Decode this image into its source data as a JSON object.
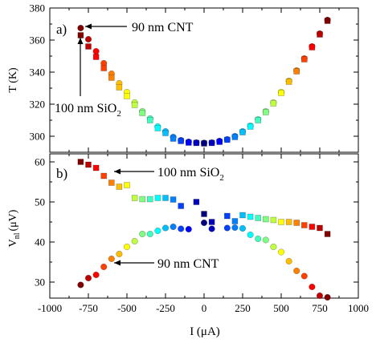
{
  "chart_data": [
    {
      "type": "scatter",
      "panel_label": "a)",
      "ylabel": "T (K)",
      "xlim": [
        -1000,
        1000
      ],
      "ylim": [
        290,
        380
      ],
      "xticks": [
        -1000,
        -750,
        -500,
        -250,
        0,
        250,
        500,
        750,
        1000
      ],
      "yticks": [
        300,
        320,
        340,
        360,
        380
      ],
      "x_tick_labels_visible": false,
      "marker": "circle+square",
      "color_scale": "jet",
      "annotations": [
        {
          "text": "90 nm CNT"
        },
        {
          "text_main": "100 nm SiO",
          "text_sub": "2"
        }
      ],
      "series": [
        {
          "marker": "circle",
          "points": [
            [
              -800,
              367.5
            ],
            [
              -750,
              360.5
            ],
            [
              -700,
              353
            ],
            [
              -650,
              345.5
            ],
            [
              -600,
              339
            ],
            [
              -550,
              333
            ],
            [
              -500,
              327.5
            ],
            [
              -450,
              321
            ],
            [
              -400,
              315.5
            ],
            [
              -350,
              311
            ],
            [
              -300,
              306
            ],
            [
              -250,
              303
            ],
            [
              -200,
              299.5
            ],
            [
              -150,
              297.5
            ],
            [
              -100,
              296.5
            ],
            [
              -50,
              296
            ],
            [
              0,
              295.8
            ],
            [
              50,
              296
            ],
            [
              100,
              297
            ],
            [
              150,
              298
            ],
            [
              200,
              300
            ],
            [
              250,
              303
            ],
            [
              300,
              306.5
            ],
            [
              350,
              310.5
            ],
            [
              400,
              315.5
            ],
            [
              450,
              321
            ],
            [
              500,
              327.5
            ],
            [
              550,
              334.5
            ],
            [
              600,
              341
            ],
            [
              650,
              348.5
            ],
            [
              700,
              356
            ],
            [
              750,
              364
            ],
            [
              800,
              372.5
            ]
          ]
        },
        {
          "marker": "square",
          "points": [
            [
              -800,
              363
            ],
            [
              -750,
              356
            ],
            [
              -700,
              349.5
            ],
            [
              -650,
              342.5
            ],
            [
              -600,
              336.5
            ],
            [
              -550,
              330.5
            ],
            [
              -500,
              325
            ],
            [
              -450,
              319.5
            ],
            [
              -400,
              314.5
            ],
            [
              -350,
              310
            ],
            [
              -300,
              305
            ],
            [
              -250,
              302
            ],
            [
              -200,
              298.5
            ],
            [
              -150,
              297
            ],
            [
              -100,
              296
            ],
            [
              -50,
              295.8
            ],
            [
              0,
              295.5
            ],
            [
              50,
              295.8
            ],
            [
              100,
              296.5
            ],
            [
              150,
              297.8
            ],
            [
              200,
              299.5
            ],
            [
              250,
              302.5
            ],
            [
              300,
              306
            ],
            [
              350,
              310
            ],
            [
              400,
              315
            ],
            [
              450,
              320.5
            ],
            [
              500,
              327
            ],
            [
              550,
              334
            ],
            [
              600,
              340.5
            ],
            [
              650,
              348
            ],
            [
              700,
              355.5
            ],
            [
              750,
              363.5
            ],
            [
              800,
              372
            ]
          ]
        }
      ]
    },
    {
      "type": "scatter",
      "panel_label": "b)",
      "ylabel_main": "V",
      "ylabel_sub": "nl",
      "ylabel_unit": "(μV)",
      "xlabel": "I (μA)",
      "xlim": [
        -1000,
        1000
      ],
      "ylim": [
        26,
        62
      ],
      "xticks": [
        -1000,
        -750,
        -500,
        -250,
        0,
        250,
        500,
        750,
        1000
      ],
      "yticks": [
        30,
        40,
        50,
        60
      ],
      "marker": "circle+square",
      "color_scale": "jet",
      "annotations": [
        {
          "text_main": "100 nm SiO",
          "text_sub": "2"
        },
        {
          "text": "90 nm CNT"
        }
      ],
      "series": [
        {
          "name": "100 nm SiO2",
          "marker": "square",
          "points": [
            [
              -800,
              60
            ],
            [
              -750,
              59.3
            ],
            [
              -700,
              58.5
            ],
            [
              -650,
              56.5
            ],
            [
              -600,
              54.8
            ],
            [
              -550,
              53.8
            ],
            [
              -500,
              54.2
            ],
            [
              -450,
              51
            ],
            [
              -400,
              50.7
            ],
            [
              -350,
              50.7
            ],
            [
              -300,
              51
            ],
            [
              -250,
              51
            ],
            [
              -200,
              50.6
            ],
            [
              -150,
              49
            ],
            [
              -50,
              50
            ],
            [
              0,
              47
            ],
            [
              50,
              45
            ],
            [
              150,
              46.5
            ],
            [
              200,
              45.2
            ],
            [
              250,
              46.7
            ],
            [
              300,
              46.3
            ],
            [
              350,
              46
            ],
            [
              400,
              45.7
            ],
            [
              450,
              45.5
            ],
            [
              500,
              45
            ],
            [
              550,
              45
            ],
            [
              600,
              44.8
            ],
            [
              650,
              44.2
            ],
            [
              700,
              43.8
            ],
            [
              750,
              43.5
            ],
            [
              800,
              42
            ]
          ]
        },
        {
          "name": "90 nm CNT",
          "marker": "circle",
          "points": [
            [
              -800,
              29.3
            ],
            [
              -750,
              31
            ],
            [
              -700,
              31.8
            ],
            [
              -650,
              33.8
            ],
            [
              -600,
              35.8
            ],
            [
              -550,
              37
            ],
            [
              -500,
              38.8
            ],
            [
              -450,
              40.2
            ],
            [
              -400,
              42
            ],
            [
              -350,
              42
            ],
            [
              -300,
              42.8
            ],
            [
              -250,
              43.5
            ],
            [
              -200,
              43.8
            ],
            [
              -150,
              43.3
            ],
            [
              -100,
              43.2
            ],
            [
              0,
              44.8
            ],
            [
              50,
              43.3
            ],
            [
              150,
              43.5
            ],
            [
              200,
              43.6
            ],
            [
              250,
              43.4
            ],
            [
              300,
              41.8
            ],
            [
              350,
              40.8
            ],
            [
              400,
              40.5
            ],
            [
              450,
              38.8
            ],
            [
              500,
              37.5
            ],
            [
              550,
              35.2
            ],
            [
              600,
              32.8
            ],
            [
              650,
              31.5
            ],
            [
              700,
              28.8
            ],
            [
              750,
              26.6
            ],
            [
              800,
              26.2
            ]
          ]
        }
      ]
    }
  ]
}
